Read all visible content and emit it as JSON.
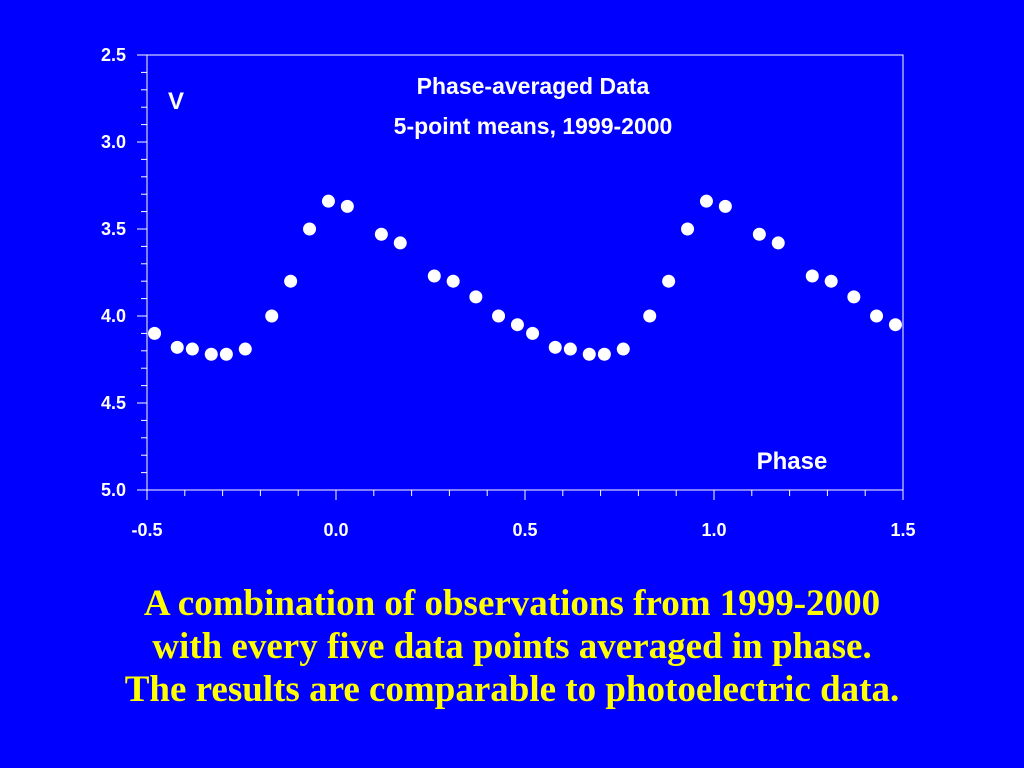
{
  "colors": {
    "background": "#0000ff",
    "foreground": "#ffffff",
    "caption": "#ffff00"
  },
  "chart_data": {
    "type": "scatter",
    "title": [
      "Phase-averaged Data",
      "5-point means, 1999-2000"
    ],
    "xlabel": "Phase",
    "ylabel": "V",
    "xlim": [
      -0.5,
      1.5
    ],
    "ylim": [
      2.5,
      5.0
    ],
    "y_inverted": true,
    "grid": false,
    "x_ticks": [
      "-0.5",
      "0.0",
      "0.5",
      "1.0",
      "1.5"
    ],
    "y_ticks": [
      "2.5",
      "3.0",
      "3.5",
      "4.0",
      "4.5",
      "5.0"
    ],
    "series": [
      {
        "x": [
          -0.48,
          -0.42,
          -0.38,
          -0.33,
          -0.29,
          -0.24,
          -0.17,
          -0.12,
          -0.07,
          -0.02,
          0.03,
          0.12,
          0.17,
          0.26,
          0.31,
          0.37,
          0.43,
          0.48,
          0.52,
          0.58,
          0.62,
          0.67,
          0.71,
          0.76,
          0.83,
          0.88,
          0.93,
          0.98,
          1.03,
          1.12,
          1.17,
          1.26,
          1.31,
          1.37,
          1.43,
          1.48
        ],
        "y": [
          4.1,
          4.18,
          4.19,
          4.22,
          4.22,
          4.19,
          4.0,
          3.8,
          3.5,
          3.34,
          3.37,
          3.53,
          3.58,
          3.77,
          3.8,
          3.89,
          4.0,
          4.05,
          4.1,
          4.18,
          4.19,
          4.22,
          4.22,
          4.19,
          4.0,
          3.8,
          3.5,
          3.34,
          3.37,
          3.53,
          3.58,
          3.77,
          3.8,
          3.89,
          4.0,
          4.05
        ]
      }
    ]
  },
  "caption": {
    "lines": [
      "A combination of observations from 1999-2000",
      "with every five data points averaged in phase.",
      "The results are comparable to photoelectric data."
    ]
  }
}
